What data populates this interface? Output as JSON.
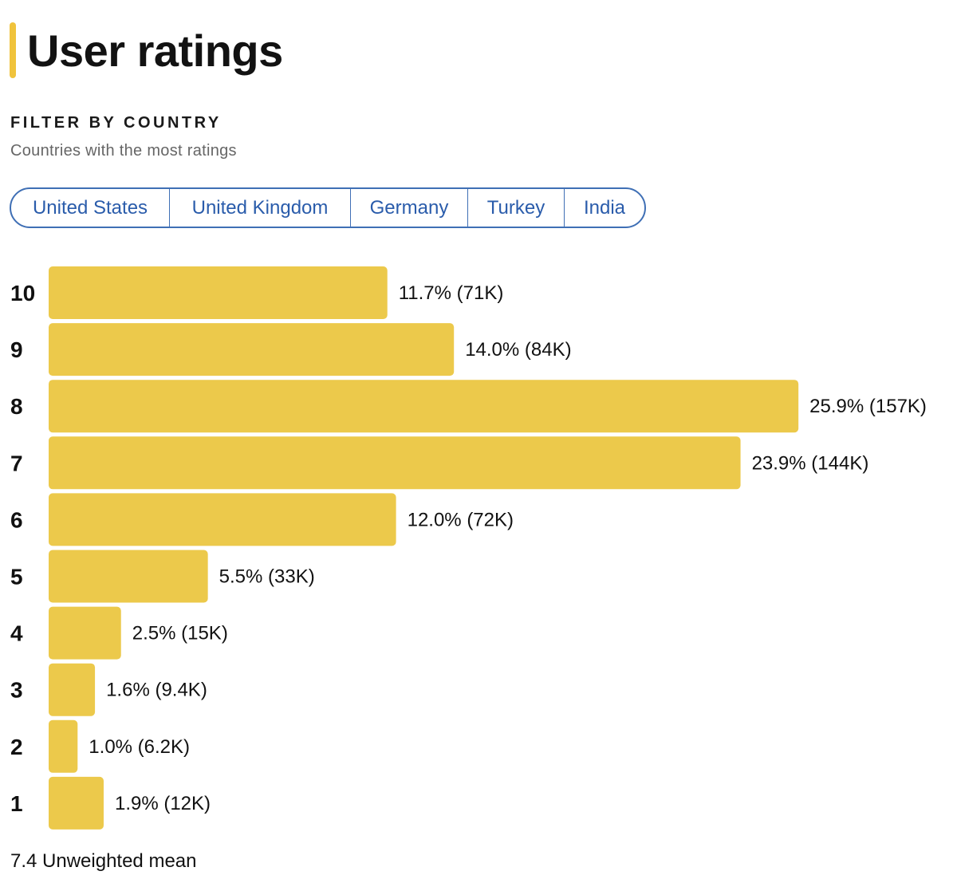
{
  "header": {
    "title": "User ratings",
    "accent_color": "#f0c33c"
  },
  "filter": {
    "heading": "FILTER BY COUNTRY",
    "subheading": "Countries with the most ratings",
    "countries": [
      "United States",
      "United Kingdom",
      "Germany",
      "Turkey",
      "India"
    ]
  },
  "chart_data": {
    "type": "bar",
    "orientation": "horizontal",
    "title": "User ratings",
    "categories": [
      "10",
      "9",
      "8",
      "7",
      "6",
      "5",
      "4",
      "3",
      "2",
      "1"
    ],
    "values": [
      11.7,
      14.0,
      25.9,
      23.9,
      12.0,
      5.5,
      2.5,
      1.6,
      1.0,
      1.9
    ],
    "value_labels": [
      "11.7% (71K)",
      "14.0% (84K)",
      "25.9% (157K)",
      "23.9% (144K)",
      "12.0% (72K)",
      "5.5% (33K)",
      "2.5% (15K)",
      "1.6% (9.4K)",
      "1.0% (6.2K)",
      "1.9% (12K)"
    ],
    "counts": [
      "71K",
      "84K",
      "157K",
      "144K",
      "72K",
      "33K",
      "15K",
      "9.4K",
      "6.2K",
      "12K"
    ],
    "xlabel": "",
    "ylabel": "",
    "bar_color": "#ecc94b"
  },
  "summary": {
    "mean_text": "7.4 Unweighted mean"
  }
}
